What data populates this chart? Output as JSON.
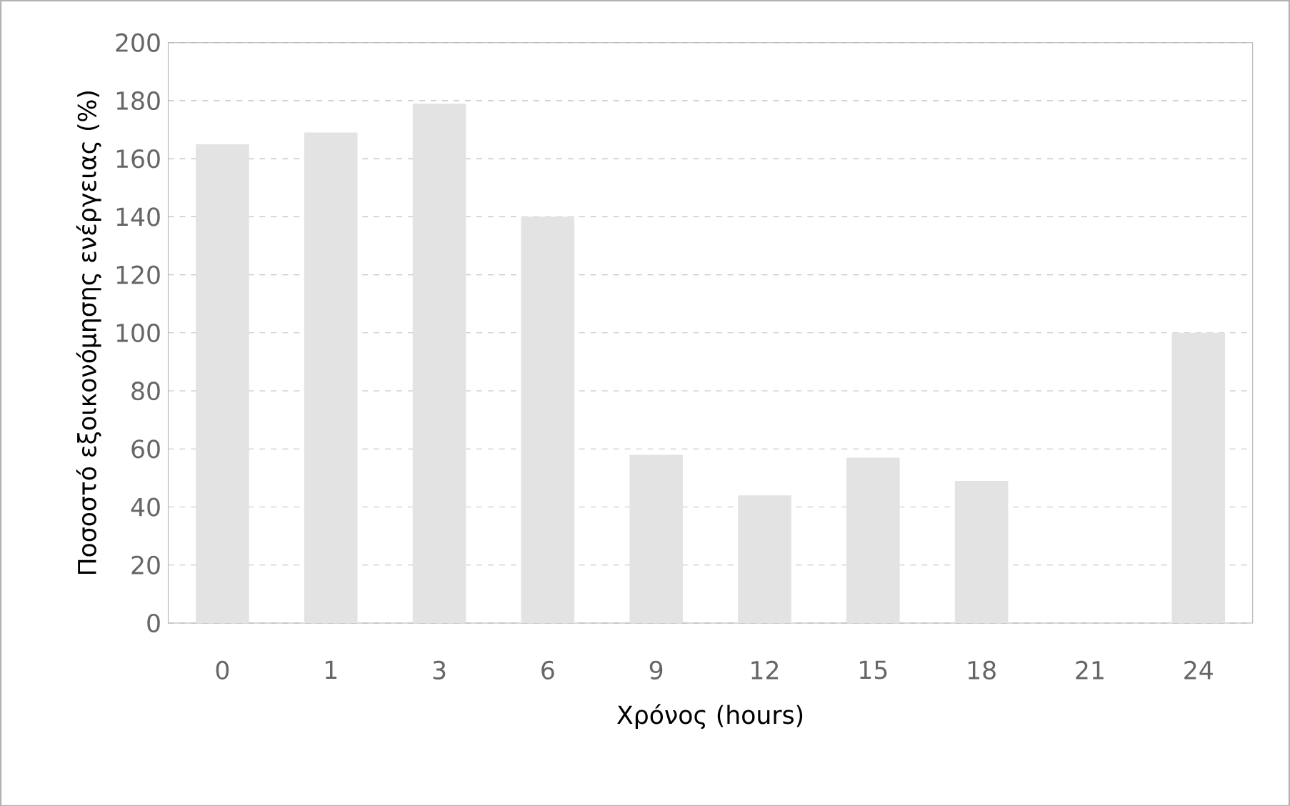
{
  "chart_data": {
    "type": "bar",
    "xlabel": "Χρόνος (hours)",
    "ylabel": "Ποσοστό εξοικονόμησης ενέργειας (%)",
    "categories": [
      "0",
      "1",
      "3",
      "6",
      "9",
      "12",
      "15",
      "18",
      "21",
      "24"
    ],
    "values": [
      165,
      169,
      179,
      140,
      58,
      44,
      57,
      49,
      null,
      100
    ],
    "color": "#e3e3e3",
    "ylim": [
      0,
      200
    ],
    "yticks": [
      0,
      20,
      40,
      60,
      80,
      100,
      120,
      140,
      160,
      180,
      200
    ],
    "grid": "y"
  }
}
